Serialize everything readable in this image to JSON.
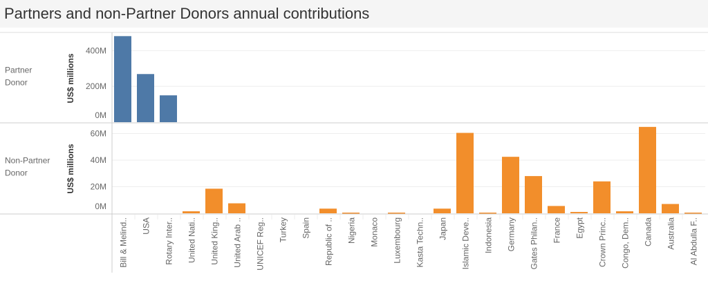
{
  "chart_data": {
    "type": "bar",
    "title": "Partners and non-Partner Donors annual contributions",
    "categories": [
      "Bill & Melind..",
      "USA",
      "Rotary Inter..",
      "United Nati..",
      "United King..",
      "United Arab ..",
      "UNICEF Reg..",
      "Turkey",
      "Spain",
      "Republic of ..",
      "Nigeria",
      "Monaco",
      "Luxembourg",
      "Kasta Techn..",
      "Japan",
      "Islamic Deve..",
      "Indonesia",
      "Germany",
      "Gates Philan..",
      "France",
      "Egypt",
      "Crown Princ..",
      "Congo, Dem..",
      "Canada",
      "Australia",
      "Al Abdulla F.."
    ],
    "panels": [
      {
        "name": "Partner Donor",
        "row_label": [
          "Partner",
          "Donor"
        ],
        "ylabel": "US$ millions",
        "ylim": [
          0,
          490
        ],
        "ticks": [
          0,
          200,
          400
        ],
        "tick_labels": [
          "0M",
          "200M",
          "400M"
        ],
        "color": "#4e79a7",
        "values": [
          481,
          269,
          150,
          null,
          null,
          null,
          null,
          null,
          null,
          null,
          null,
          null,
          null,
          null,
          null,
          null,
          null,
          null,
          null,
          null,
          null,
          null,
          null,
          null,
          null,
          null
        ]
      },
      {
        "name": "Non-Partner Donor",
        "row_label": [
          "Non-Partner",
          "Donor"
        ],
        "ylabel": "US$ millions",
        "ylim": [
          0,
          67
        ],
        "ticks": [
          0,
          20,
          40,
          60
        ],
        "tick_labels": [
          "0M",
          "20M",
          "40M",
          "60M"
        ],
        "color": "#f28e2b",
        "values": [
          null,
          null,
          null,
          1.5,
          18.5,
          7.5,
          0,
          0,
          0,
          3.5,
          0.5,
          0,
          0.5,
          0,
          3.5,
          60.5,
          0.5,
          42.5,
          28,
          5.5,
          1,
          24,
          1.5,
          65,
          7,
          0.5
        ]
      }
    ],
    "grid": true,
    "legend": "none"
  }
}
